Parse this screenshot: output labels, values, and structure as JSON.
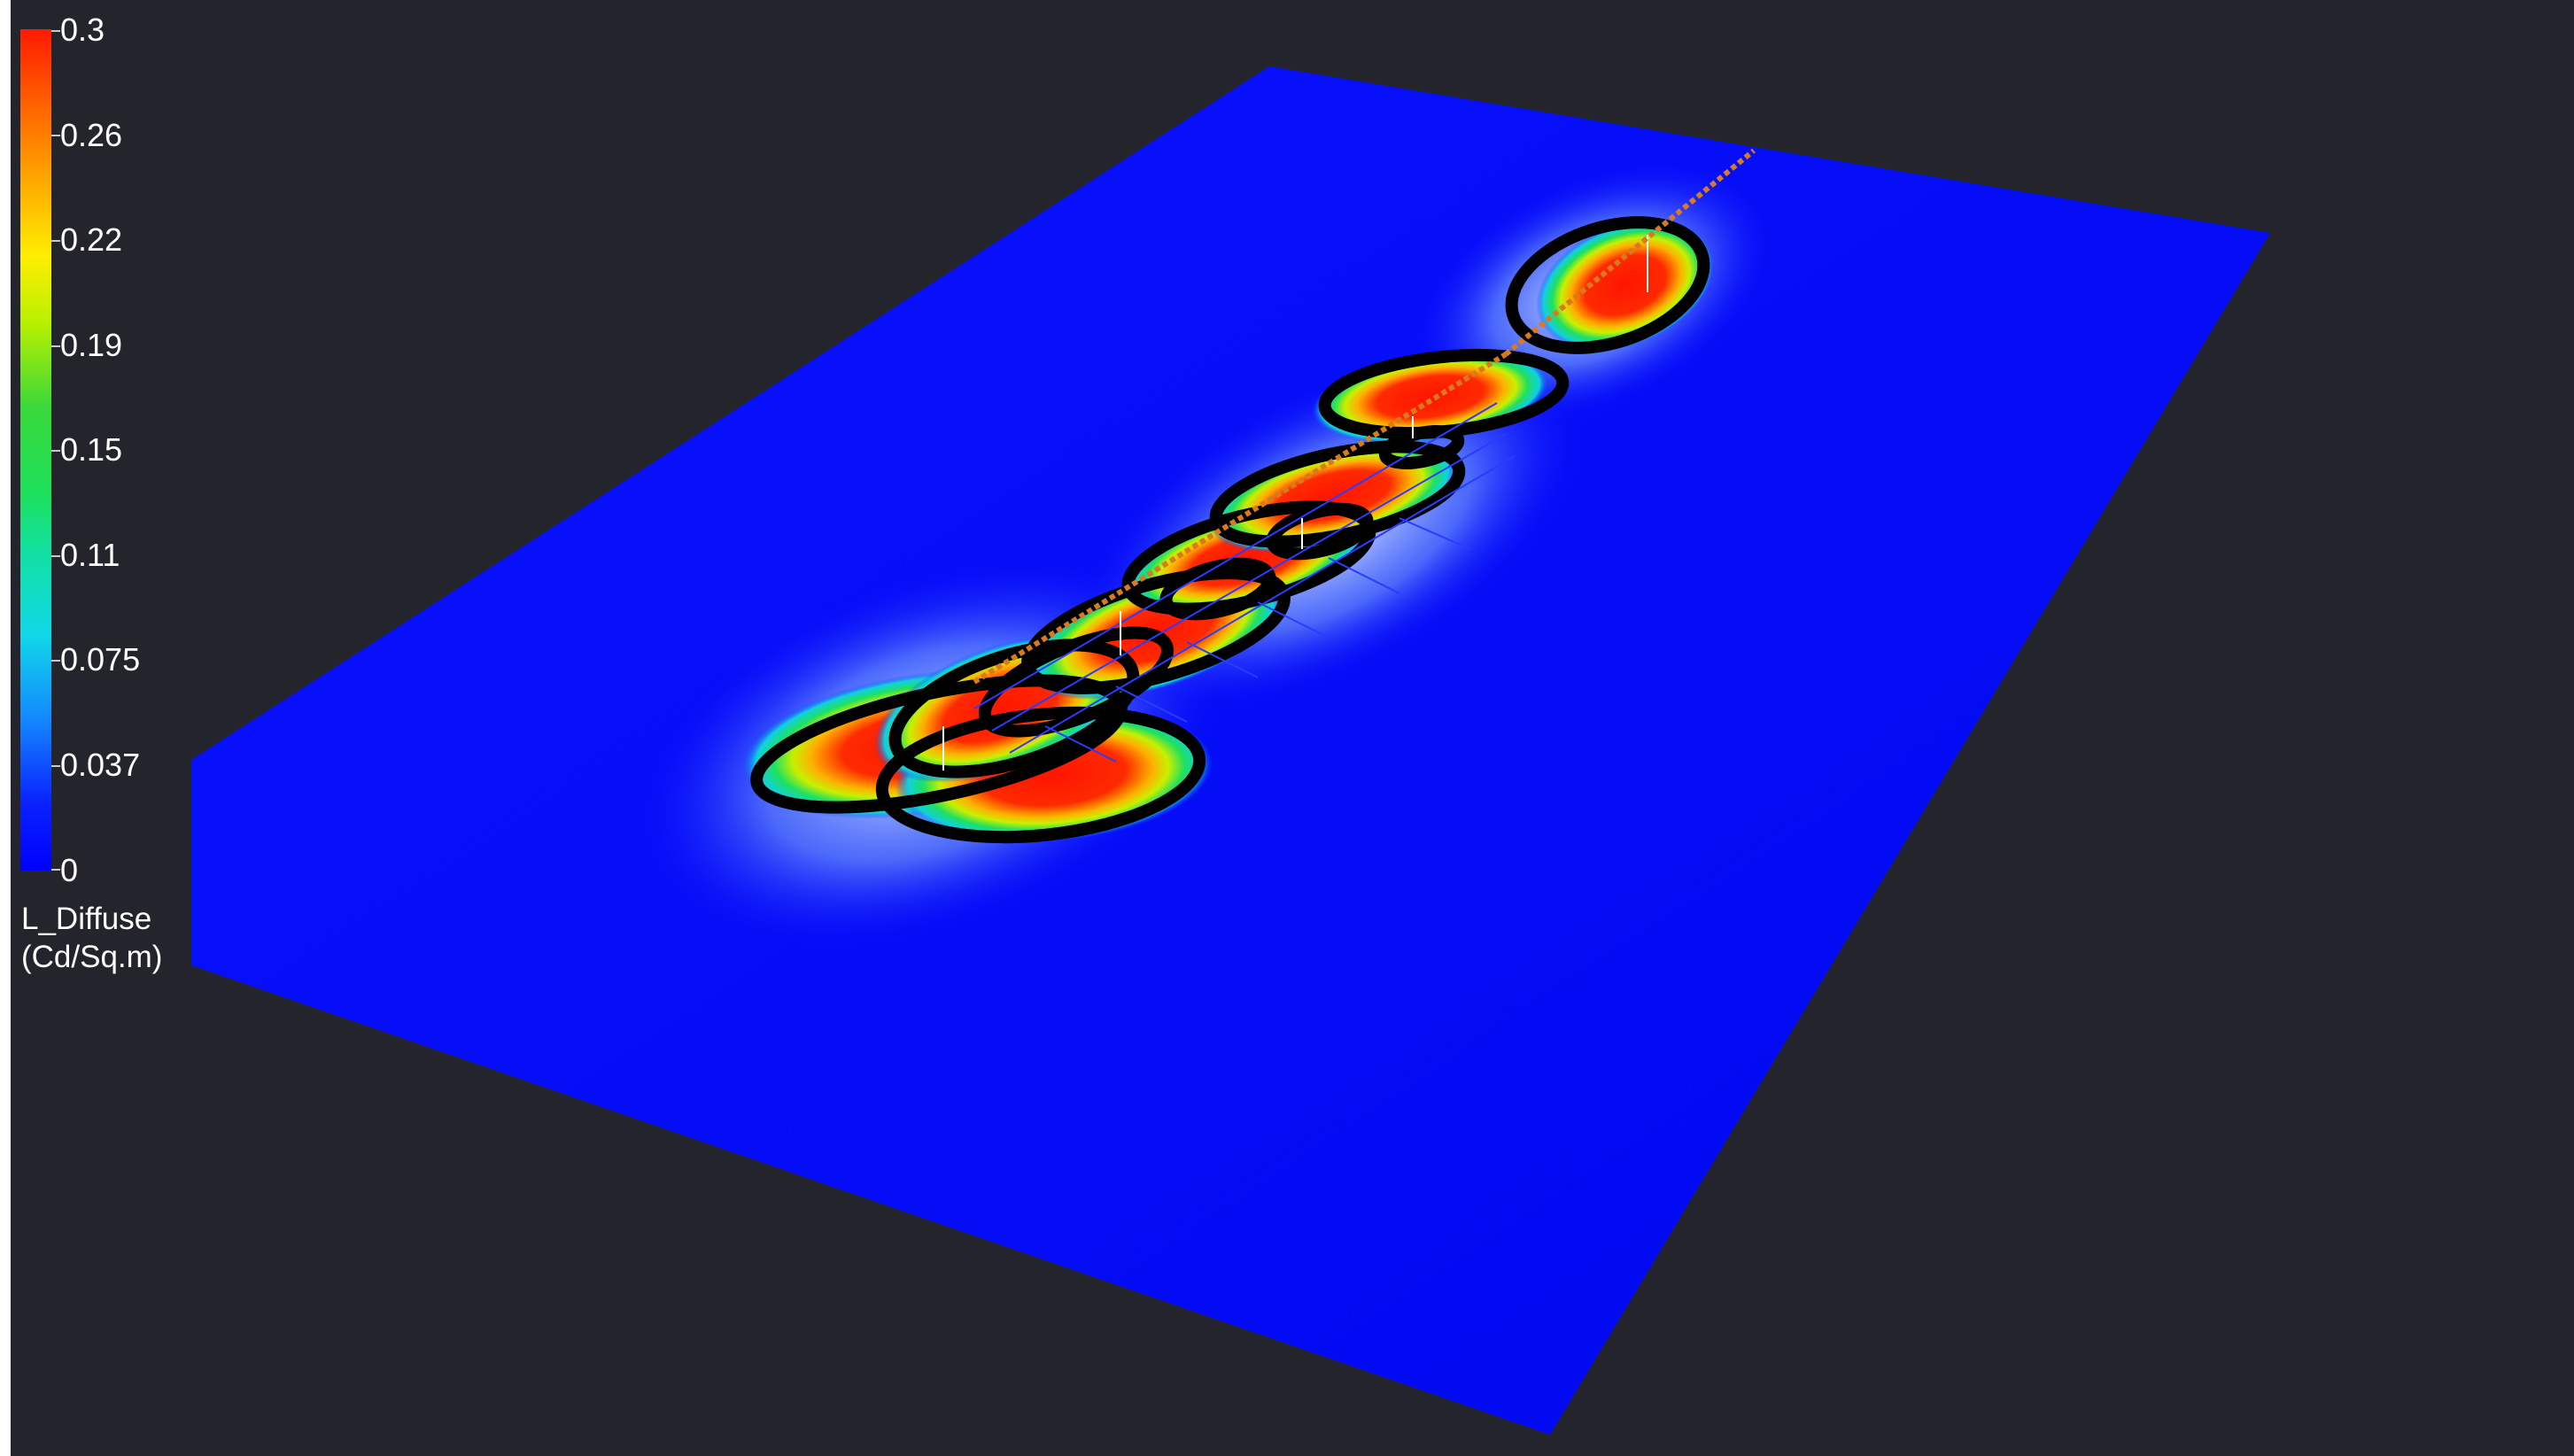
{
  "legend": {
    "ticks": [
      "0.3",
      "0.26",
      "0.22",
      "0.19",
      "0.15",
      "0.11",
      "0.075",
      "0.037",
      "0"
    ],
    "title_line1": "L_Diffuse",
    "title_line2": "(Cd/Sq.m)",
    "colors": {
      "max": "#ff1a00",
      "high": "#ffa000",
      "mid_high": "#ffee00",
      "mid": "#3ad83a",
      "low_mid": "#10d8e8",
      "low": "#1488ff",
      "min": "#0000ff"
    }
  },
  "scene": {
    "background_color": "#24252c",
    "plane_color": "#0000ff",
    "contour_color": "#000000"
  }
}
